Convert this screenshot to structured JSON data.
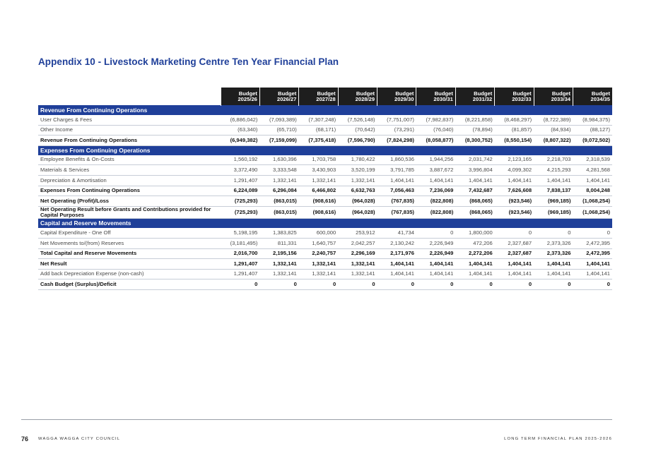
{
  "title": "Appendix 10 - Livestock Marketing Centre Ten Year Financial Plan",
  "columns": [
    [
      "Budget",
      "2025/26"
    ],
    [
      "Budget",
      "2026/27"
    ],
    [
      "Budget",
      "2027/28"
    ],
    [
      "Budget",
      "2028/29"
    ],
    [
      "Budget",
      "2029/30"
    ],
    [
      "Budget",
      "2030/31"
    ],
    [
      "Budget",
      "2031/32"
    ],
    [
      "Budget",
      "2032/33"
    ],
    [
      "Budget",
      "2033/34"
    ],
    [
      "Budget",
      "2034/35"
    ]
  ],
  "sections": [
    {
      "heading": "Revenue From Continuing Operations",
      "rows": [
        {
          "label": "User Charges & Fees",
          "style": "normal",
          "values": [
            "(6,886,042)",
            "(7,093,389)",
            "(7,307,248)",
            "(7,526,148)",
            "(7,751,007)",
            "(7,982,837)",
            "(8,221,858)",
            "(8,468,297)",
            "(8,722,389)",
            "(8,984,375)"
          ]
        },
        {
          "label": "Other Income",
          "style": "normal",
          "values": [
            "(63,340)",
            "(65,710)",
            "(68,171)",
            "(70,642)",
            "(73,291)",
            "(76,040)",
            "(78,894)",
            "(81,857)",
            "(84,934)",
            "(88,127)"
          ]
        },
        {
          "label": "Revenue From Continuing Operations",
          "style": "bold",
          "values": [
            "(6,949,382)",
            "(7,159,099)",
            "(7,375,418)",
            "(7,596,790)",
            "(7,824,298)",
            "(8,058,877)",
            "(8,300,752)",
            "(8,550,154)",
            "(8,807,322)",
            "(9,072,502)"
          ]
        }
      ]
    },
    {
      "heading": "Expenses From Continuing Operations",
      "rows": [
        {
          "label": "Employee Benefits & On-Costs",
          "style": "normal",
          "values": [
            "1,560,192",
            "1,630,396",
            "1,703,758",
            "1,780,422",
            "1,860,536",
            "1,944,256",
            "2,031,742",
            "2,123,165",
            "2,218,703",
            "2,318,539"
          ]
        },
        {
          "label": "Materials & Services",
          "style": "normal",
          "values": [
            "3,372,490",
            "3,333,548",
            "3,430,903",
            "3,520,199",
            "3,791,785",
            "3,887,672",
            "3,996,804",
            "4,099,302",
            "4,215,293",
            "4,281,568"
          ]
        },
        {
          "label": "Depreciation & Amortisation",
          "style": "normal",
          "values": [
            "1,291,407",
            "1,332,141",
            "1,332,141",
            "1,332,141",
            "1,404,141",
            "1,404,141",
            "1,404,141",
            "1,404,141",
            "1,404,141",
            "1,404,141"
          ]
        },
        {
          "label": "Expenses From Continuing Operations",
          "style": "bold",
          "values": [
            "6,224,089",
            "6,296,084",
            "6,466,802",
            "6,632,763",
            "7,056,463",
            "7,236,069",
            "7,432,687",
            "7,626,608",
            "7,838,137",
            "8,004,248"
          ]
        },
        {
          "label": "Net Operating (Profit)/Loss",
          "style": "bold",
          "values": [
            "(725,293)",
            "(863,015)",
            "(908,616)",
            "(964,028)",
            "(767,835)",
            "(822,808)",
            "(868,065)",
            "(923,546)",
            "(969,185)",
            "(1,068,254)"
          ]
        },
        {
          "label": "Net Operating Result before Grants and Contributions provided for Capital Purposes",
          "style": "bold tall",
          "values": [
            "(725,293)",
            "(863,015)",
            "(908,616)",
            "(964,028)",
            "(767,835)",
            "(822,808)",
            "(868,065)",
            "(923,546)",
            "(969,185)",
            "(1,068,254)"
          ]
        }
      ]
    },
    {
      "heading": "Capital and Reserve Movements",
      "rows": [
        {
          "label": "Capital Expenditure - One Off",
          "style": "normal",
          "values": [
            "5,198,195",
            "1,383,825",
            "600,000",
            "253,912",
            "41,734",
            "0",
            "1,800,000",
            "0",
            "0",
            "0"
          ]
        },
        {
          "label": "Net Movements to/(from) Reserves",
          "style": "normal",
          "values": [
            "(3,181,495)",
            "811,331",
            "1,640,757",
            "2,042,257",
            "2,130,242",
            "2,226,949",
            "472,206",
            "2,327,687",
            "2,373,326",
            "2,472,395"
          ]
        },
        {
          "label": "Total Capital and Reserve Movements",
          "style": "bold",
          "values": [
            "2,016,700",
            "2,195,156",
            "2,240,757",
            "2,296,169",
            "2,171,976",
            "2,226,949",
            "2,272,206",
            "2,327,687",
            "2,373,326",
            "2,472,395"
          ]
        },
        {
          "label": "Net Result",
          "style": "bold",
          "values": [
            "1,291,407",
            "1,332,141",
            "1,332,141",
            "1,332,141",
            "1,404,141",
            "1,404,141",
            "1,404,141",
            "1,404,141",
            "1,404,141",
            "1,404,141"
          ]
        },
        {
          "label": "Add back Depreciation Expense (non-cash)",
          "style": "normal",
          "values": [
            "1,291,407",
            "1,332,141",
            "1,332,141",
            "1,332,141",
            "1,404,141",
            "1,404,141",
            "1,404,141",
            "1,404,141",
            "1,404,141",
            "1,404,141"
          ]
        },
        {
          "label": "Cash Budget (Surplus)/Deficit",
          "style": "bold",
          "values": [
            "0",
            "0",
            "0",
            "0",
            "0",
            "0",
            "0",
            "0",
            "0",
            "0"
          ]
        }
      ]
    }
  ],
  "footer": {
    "page_number": "76",
    "council": "WAGGA WAGGA CITY COUNCIL",
    "document": "LONG TERM FINANCIAL PLAN 2025-2026"
  },
  "colors": {
    "accent": "#1f3f99",
    "header_bg": "#1e1e1e"
  }
}
